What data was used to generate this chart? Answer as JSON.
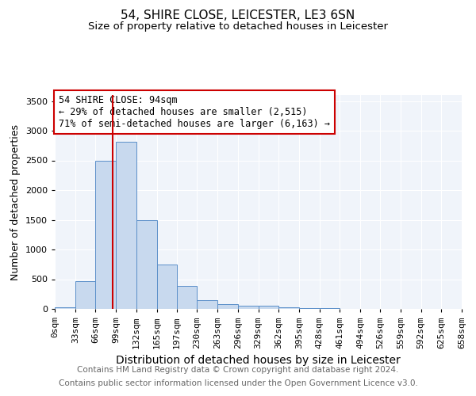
{
  "title": "54, SHIRE CLOSE, LEICESTER, LE3 6SN",
  "subtitle": "Size of property relative to detached houses in Leicester",
  "xlabel": "Distribution of detached houses by size in Leicester",
  "ylabel": "Number of detached properties",
  "bin_edges": [
    0,
    33,
    66,
    99,
    132,
    165,
    197,
    230,
    263,
    296,
    329,
    362,
    395,
    428,
    461,
    494,
    526,
    559,
    592,
    625,
    658
  ],
  "bar_heights": [
    25,
    470,
    2500,
    2820,
    1490,
    750,
    390,
    150,
    85,
    60,
    50,
    30,
    18,
    10,
    5,
    3,
    2,
    1,
    0,
    0
  ],
  "bar_color": "#c8d9ee",
  "bar_edge_color": "#5b8fc9",
  "red_line_x": 94,
  "ylim": [
    0,
    3600
  ],
  "yticks": [
    0,
    500,
    1000,
    1500,
    2000,
    2500,
    3000,
    3500
  ],
  "annotation_text": "54 SHIRE CLOSE: 94sqm\n← 29% of detached houses are smaller (2,515)\n71% of semi-detached houses are larger (6,163) →",
  "annotation_box_color": "#ffffff",
  "annotation_box_edge_color": "#cc0000",
  "footnote_line1": "Contains HM Land Registry data © Crown copyright and database right 2024.",
  "footnote_line2": "Contains public sector information licensed under the Open Government Licence v3.0.",
  "title_fontsize": 11,
  "subtitle_fontsize": 9.5,
  "xlabel_fontsize": 10,
  "ylabel_fontsize": 9,
  "tick_fontsize": 8,
  "annotation_fontsize": 8.5,
  "footnote_fontsize": 7.5
}
